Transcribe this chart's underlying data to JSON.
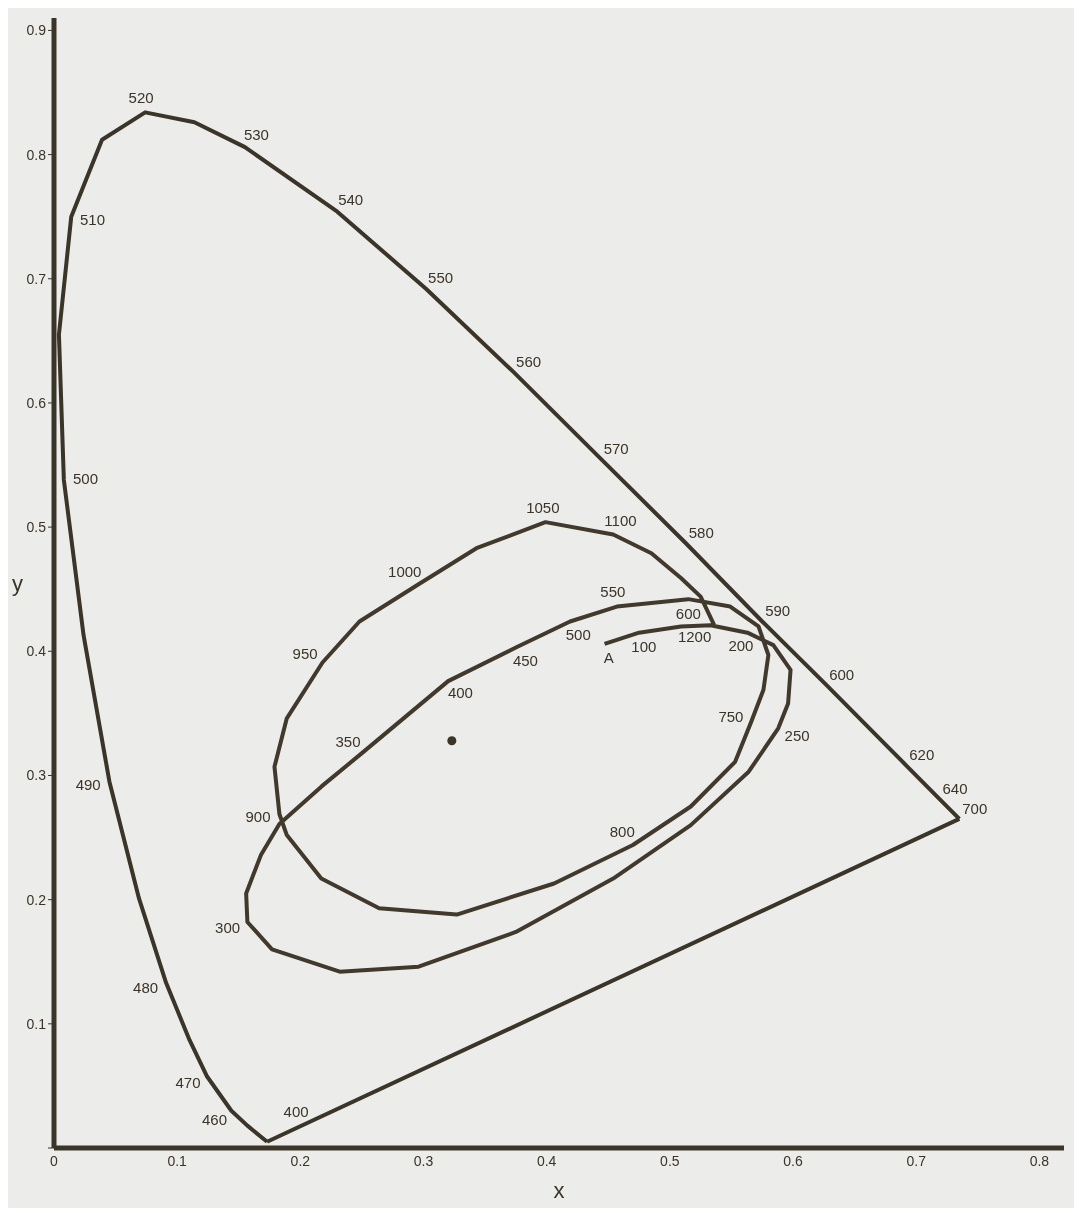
{
  "chart_data": {
    "type": "line",
    "xlabel": "x",
    "ylabel": "y",
    "xlim": [
      0,
      0.82
    ],
    "ylim": [
      0,
      0.91
    ],
    "xticks": [
      {
        "value": 0,
        "label": "0"
      },
      0.1,
      0.2,
      0.3,
      0.4,
      0.5,
      0.6,
      0.7,
      0.8
    ],
    "yticks": [
      {
        "value": 0,
        "label": null
      },
      0.1,
      0.2,
      0.3,
      0.4,
      0.5,
      0.6,
      0.7,
      0.8,
      0.9
    ],
    "grid": false,
    "line_style": "solid",
    "series": [
      {
        "color": "#3b3428",
        "x": [
          0.173,
          0.157,
          0.144,
          0.124,
          0.11,
          0.091,
          0.069,
          0.045,
          0.024,
          0.008,
          0.004,
          0.014,
          0.039,
          0.074,
          0.114,
          0.155,
          0.23,
          0.302,
          0.373,
          0.444,
          0.513,
          0.575,
          0.627,
          0.692,
          0.719,
          0.735
        ],
        "values": [
          0.005,
          0.018,
          0.03,
          0.058,
          0.087,
          0.133,
          0.201,
          0.295,
          0.413,
          0.538,
          0.655,
          0.75,
          0.812,
          0.834,
          0.826,
          0.806,
          0.754,
          0.692,
          0.625,
          0.555,
          0.487,
          0.424,
          0.373,
          0.308,
          0.281,
          0.265
        ]
      },
      {
        "color": "#3b3428",
        "x": [
          0.735,
          0.173
        ],
        "values": [
          0.265,
          0.005
        ]
      },
      {
        "color": "#41392c",
        "x": [
          0.447,
          0.475,
          0.509,
          0.533,
          0.563,
          0.584,
          0.598,
          0.596,
          0.588,
          0.564,
          0.517,
          0.454,
          0.375,
          0.296,
          0.232,
          0.177,
          0.157,
          0.156,
          0.168,
          0.183,
          0.217,
          0.25,
          0.32,
          0.375,
          0.419,
          0.457,
          0.515,
          0.549,
          0.572,
          0.58,
          0.576,
          0.566,
          0.553,
          0.517,
          0.47,
          0.406,
          0.327,
          0.264,
          0.217,
          0.189,
          0.183,
          0.179,
          0.189,
          0.218,
          0.248,
          0.296,
          0.343,
          0.399,
          0.454,
          0.485,
          0.509,
          0.525,
          0.536
        ],
        "values": [
          0.406,
          0.415,
          0.42,
          0.421,
          0.415,
          0.405,
          0.385,
          0.358,
          0.338,
          0.303,
          0.26,
          0.217,
          0.174,
          0.146,
          0.142,
          0.16,
          0.182,
          0.205,
          0.236,
          0.261,
          0.291,
          0.318,
          0.376,
          0.403,
          0.424,
          0.436,
          0.442,
          0.436,
          0.42,
          0.397,
          0.369,
          0.343,
          0.311,
          0.275,
          0.244,
          0.213,
          0.188,
          0.193,
          0.217,
          0.252,
          0.269,
          0.307,
          0.346,
          0.391,
          0.424,
          0.454,
          0.483,
          0.504,
          0.494,
          0.479,
          0.459,
          0.444,
          0.421
        ]
      },
      {
        "type": "scatter",
        "color": "#3b3428",
        "marker": "circle",
        "x": [
          0.323
        ],
        "values": [
          0.328
        ]
      }
    ],
    "annotations": [
      {
        "text": "400",
        "x": 0.173,
        "y": 0.005
      },
      {
        "text": "460",
        "x": 0.144,
        "y": 0.03
      },
      {
        "text": "470",
        "x": 0.124,
        "y": 0.058
      },
      {
        "text": "480",
        "x": 0.091,
        "y": 0.133
      },
      {
        "text": "490",
        "x": 0.045,
        "y": 0.295
      },
      {
        "text": "500",
        "x": 0.008,
        "y": 0.538
      },
      {
        "text": "510",
        "x": 0.014,
        "y": 0.75
      },
      {
        "text": "520",
        "x": 0.074,
        "y": 0.834
      },
      {
        "text": "530",
        "x": 0.155,
        "y": 0.806
      },
      {
        "text": "540",
        "x": 0.23,
        "y": 0.754
      },
      {
        "text": "550",
        "x": 0.302,
        "y": 0.692
      },
      {
        "text": "560",
        "x": 0.373,
        "y": 0.625
      },
      {
        "text": "570",
        "x": 0.444,
        "y": 0.555
      },
      {
        "text": "580",
        "x": 0.513,
        "y": 0.487
      },
      {
        "text": "590",
        "x": 0.575,
        "y": 0.424
      },
      {
        "text": "600",
        "x": 0.627,
        "y": 0.373
      },
      {
        "text": "620",
        "x": 0.692,
        "y": 0.308
      },
      {
        "text": "640",
        "x": 0.719,
        "y": 0.281
      },
      {
        "text": "700",
        "x": 0.735,
        "y": 0.265
      },
      {
        "text": "A",
        "x": 0.447,
        "y": 0.406
      },
      {
        "text": "100",
        "x": 0.475,
        "y": 0.415
      },
      {
        "text": "200",
        "x": 0.563,
        "y": 0.415
      },
      {
        "text": "250",
        "x": 0.588,
        "y": 0.338
      },
      {
        "text": "300",
        "x": 0.157,
        "y": 0.182
      },
      {
        "text": "350",
        "x": 0.25,
        "y": 0.318
      },
      {
        "text": "400",
        "x": 0.32,
        "y": 0.376
      },
      {
        "text": "450",
        "x": 0.375,
        "y": 0.403
      },
      {
        "text": "500",
        "x": 0.419,
        "y": 0.424
      },
      {
        "text": "550",
        "x": 0.457,
        "y": 0.436
      },
      {
        "text": "600",
        "x": 0.515,
        "y": 0.442
      },
      {
        "text": "750",
        "x": 0.566,
        "y": 0.343
      },
      {
        "text": "800",
        "x": 0.47,
        "y": 0.244
      },
      {
        "text": "900",
        "x": 0.183,
        "y": 0.269
      },
      {
        "text": "950",
        "x": 0.218,
        "y": 0.391
      },
      {
        "text": "1000",
        "x": 0.296,
        "y": 0.454
      },
      {
        "text": "1050",
        "x": 0.399,
        "y": 0.504
      },
      {
        "text": "1100",
        "x": 0.454,
        "y": 0.494
      },
      {
        "text": "1200",
        "x": 0.536,
        "y": 0.421
      }
    ]
  }
}
